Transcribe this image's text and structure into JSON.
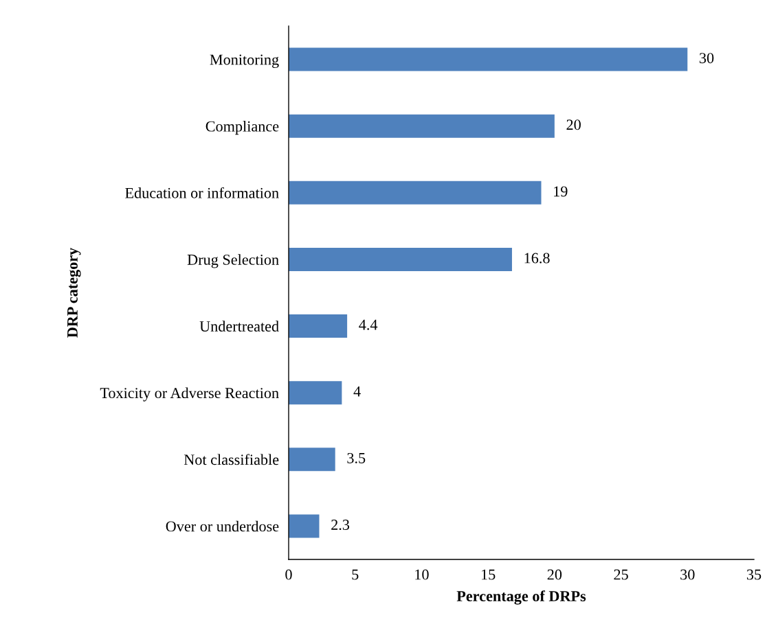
{
  "chart_data": {
    "type": "bar",
    "orientation": "horizontal",
    "xlabel": "Percentage of DRPs",
    "ylabel": "DRP category",
    "categories": [
      "Monitoring",
      "Compliance",
      "Education or information",
      "Drug Selection",
      "Undertreated",
      "Toxicity or Adverse Reaction",
      "Not classifiable",
      "Over or underdose"
    ],
    "values": [
      30,
      20,
      19,
      16.8,
      4.4,
      4,
      3.5,
      2.3
    ],
    "color": "#4f81bd",
    "xlim": [
      0,
      35
    ],
    "xticks": [
      0,
      5,
      10,
      15,
      20,
      25,
      30,
      35
    ],
    "grid": false,
    "legend": false,
    "data_labels": true
  }
}
